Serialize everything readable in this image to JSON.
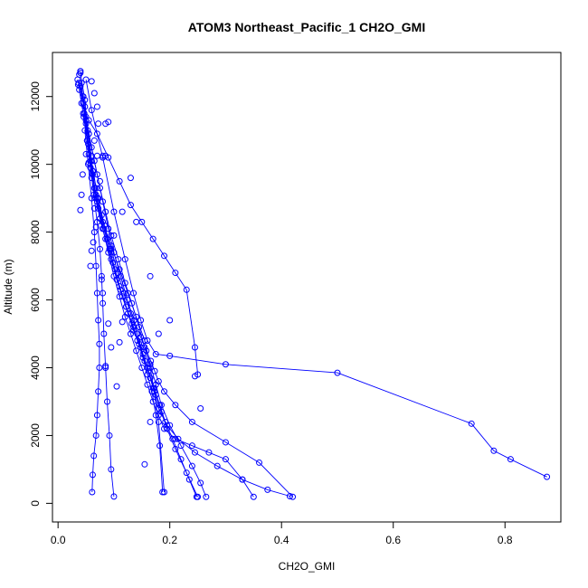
{
  "chart_data": {
    "type": "line",
    "title": "ATOM3 Northeast_Pacific_1 CH2O_GMI",
    "xlabel": "CH2O_GMI",
    "ylabel": "Altitude (m)",
    "xlim": [
      -0.01,
      0.9
    ],
    "ylim": [
      -550,
      13300
    ],
    "xticks": [
      0.0,
      0.2,
      0.4,
      0.6,
      0.8
    ],
    "xtick_labels": [
      "0.0",
      "0.2",
      "0.4",
      "0.6",
      "0.8"
    ],
    "yticks": [
      0,
      2000,
      4000,
      6000,
      8000,
      10000,
      12000
    ],
    "ytick_labels": [
      "0",
      "2000",
      "4000",
      "6000",
      "8000",
      "10000",
      "12000"
    ],
    "series_color": "#0000ff",
    "marker": "open-circle",
    "grid": false,
    "series": [
      {
        "x": [
          0.037,
          0.045,
          0.05,
          0.055,
          0.06,
          0.067,
          0.075,
          0.085,
          0.095,
          0.105,
          0.115,
          0.125,
          0.135,
          0.145,
          0.155,
          0.165,
          0.175,
          0.185,
          0.195,
          0.21,
          0.23,
          0.25
        ],
        "y": [
          12400,
          12000,
          11200,
          10300,
          9600,
          9000,
          8400,
          7800,
          7200,
          6600,
          6100,
          5600,
          5100,
          4700,
          4200,
          3700,
          3200,
          2700,
          2200,
          1600,
          900,
          190
        ]
      },
      {
        "x": [
          0.04,
          0.048,
          0.053,
          0.058,
          0.065,
          0.072,
          0.082,
          0.092,
          0.102,
          0.112,
          0.122,
          0.132,
          0.142,
          0.152,
          0.16,
          0.168,
          0.175,
          0.182,
          0.187
        ],
        "y": [
          12700,
          11900,
          11000,
          10100,
          9300,
          8700,
          8100,
          7500,
          6900,
          6300,
          5800,
          5300,
          4800,
          4300,
          3800,
          3300,
          2600,
          1700,
          330
        ]
      },
      {
        "x": [
          0.042,
          0.047,
          0.052,
          0.058,
          0.068,
          0.08,
          0.095,
          0.11,
          0.125,
          0.14,
          0.155,
          0.165,
          0.175,
          0.185,
          0.2,
          0.22,
          0.24,
          0.255,
          0.265
        ],
        "y": [
          12400,
          11500,
          10700,
          9900,
          9100,
          8300,
          7600,
          6900,
          6200,
          5500,
          4800,
          4100,
          3500,
          2900,
          2300,
          1700,
          1100,
          600,
          190
        ]
      },
      {
        "x": [
          0.045,
          0.05,
          0.056,
          0.062,
          0.07,
          0.08,
          0.09,
          0.1,
          0.11,
          0.12,
          0.13,
          0.14,
          0.15,
          0.16,
          0.17,
          0.18,
          0.19,
          0.21,
          0.24,
          0.27,
          0.3,
          0.33,
          0.35
        ],
        "y": [
          12000,
          11300,
          10500,
          9700,
          8900,
          8100,
          7400,
          6700,
          6100,
          5500,
          5000,
          4500,
          4000,
          3500,
          3000,
          2600,
          2200,
          1900,
          1700,
          1500,
          1300,
          700,
          190
        ]
      },
      {
        "x": [
          0.048,
          0.055,
          0.06,
          0.068,
          0.078,
          0.088,
          0.098,
          0.11,
          0.122,
          0.135,
          0.148,
          0.16,
          0.17,
          0.18,
          0.195,
          0.215,
          0.245,
          0.285,
          0.33,
          0.375,
          0.415
        ],
        "y": [
          11700,
          10900,
          10100,
          9300,
          8500,
          7800,
          7100,
          6400,
          5800,
          5200,
          4600,
          4000,
          3400,
          2800,
          2300,
          1900,
          1500,
          1100,
          700,
          400,
          210
        ]
      },
      {
        "x": [
          0.035,
          0.045,
          0.055,
          0.065,
          0.075,
          0.085,
          0.095,
          0.108,
          0.12,
          0.132,
          0.145,
          0.155,
          0.165,
          0.172,
          0.18,
          0.19
        ],
        "y": [
          12500,
          11800,
          10900,
          10100,
          9300,
          8600,
          7900,
          7200,
          6500,
          5900,
          5200,
          4600,
          4000,
          3300,
          2400,
          330
        ]
      },
      {
        "x": [
          0.038,
          0.046,
          0.054,
          0.062,
          0.072,
          0.083,
          0.095,
          0.107,
          0.118,
          0.13,
          0.142,
          0.152,
          0.162,
          0.172,
          0.182,
          0.192,
          0.205,
          0.22,
          0.235,
          0.248
        ],
        "y": [
          12200,
          11400,
          10600,
          9800,
          9000,
          8200,
          7500,
          6800,
          6200,
          5600,
          5000,
          4400,
          3900,
          3400,
          2900,
          2400,
          1900,
          1300,
          700,
          190
        ]
      },
      {
        "x": [
          0.04,
          0.05,
          0.06,
          0.07,
          0.08,
          0.09,
          0.1,
          0.112,
          0.124,
          0.136,
          0.148,
          0.158,
          0.166,
          0.173,
          0.18,
          0.19,
          0.21,
          0.24,
          0.3,
          0.36,
          0.42
        ],
        "y": [
          12300,
          11400,
          10500,
          9700,
          8900,
          8100,
          7400,
          6700,
          6000,
          5400,
          4900,
          4500,
          4200,
          3900,
          3600,
          3300,
          2900,
          2400,
          1800,
          1200,
          190
        ]
      },
      {
        "x": [
          0.05,
          0.06,
          0.08,
          0.1,
          0.12,
          0.135,
          0.148,
          0.16,
          0.175,
          0.2,
          0.3,
          0.5,
          0.74,
          0.78,
          0.81,
          0.875
        ],
        "y": [
          12500,
          11600,
          10200,
          8600,
          7200,
          6200,
          5400,
          4800,
          4400,
          4350,
          4100,
          3850,
          2350,
          1550,
          1300,
          780
        ]
      },
      {
        "x": [
          0.045,
          0.052,
          0.058,
          0.064,
          0.07,
          0.075,
          0.078,
          0.08,
          0.082,
          0.085,
          0.088,
          0.092,
          0.095,
          0.1
        ],
        "y": [
          11500,
          10700,
          9900,
          9100,
          8300,
          7500,
          6700,
          5900,
          5000,
          4000,
          3000,
          2000,
          1000,
          200
        ]
      },
      {
        "x": [
          0.048,
          0.054,
          0.06,
          0.065,
          0.068,
          0.07,
          0.072,
          0.074,
          0.074,
          0.072,
          0.07,
          0.068,
          0.064,
          0.062,
          0.061
        ],
        "y": [
          11000,
          10000,
          9000,
          8000,
          7000,
          6200,
          5400,
          4700,
          4000,
          3300,
          2600,
          2000,
          1400,
          840,
          330
        ]
      },
      {
        "x": [
          0.042,
          0.055,
          0.07,
          0.09,
          0.11,
          0.13,
          0.15,
          0.17,
          0.19,
          0.21,
          0.23,
          0.245,
          0.25
        ],
        "y": [
          11800,
          11300,
          10900,
          10200,
          9500,
          8800,
          8300,
          7800,
          7300,
          6800,
          6300,
          4600,
          3800
        ]
      }
    ],
    "extra_points": {
      "x": [
        0.06,
        0.065,
        0.07,
        0.072,
        0.065,
        0.05,
        0.06,
        0.062,
        0.07,
        0.08,
        0.085,
        0.09,
        0.085,
        0.075,
        0.07,
        0.065,
        0.13,
        0.14,
        0.115,
        0.095,
        0.1,
        0.165,
        0.2,
        0.18,
        0.245,
        0.255,
        0.165,
        0.155,
        0.105,
        0.11,
        0.115,
        0.09,
        0.095,
        0.085,
        0.08,
        0.078,
        0.06,
        0.058,
        0.063,
        0.068,
        0.04,
        0.042,
        0.044,
        0.055,
        0.036,
        0.038,
        0.04
      ],
      "y": [
        12450,
        12100,
        11700,
        11200,
        10700,
        10300,
        10250,
        9800,
        10250,
        10250,
        11200,
        11250,
        10250,
        9500,
        9000,
        8700,
        9600,
        8300,
        8600,
        7400,
        7900,
        6700,
        5400,
        5000,
        3750,
        2800,
        2400,
        1150,
        3450,
        4750,
        5350,
        5300,
        4600,
        4050,
        6200,
        6600,
        7450,
        7000,
        7700,
        8150,
        8650,
        9100,
        9700,
        10050,
        12350,
        12650,
        12750
      ]
    }
  }
}
